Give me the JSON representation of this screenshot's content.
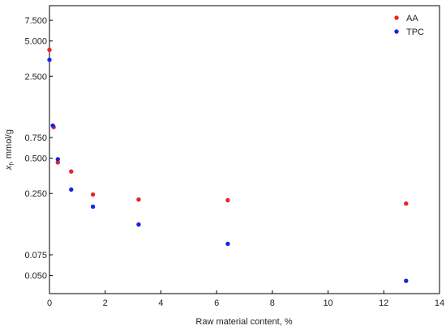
{
  "chart_data": {
    "type": "scatter",
    "xlabel": "Raw material content, %",
    "ylabel_main": "x",
    "ylabel_sub": "f",
    "ylabel_rest": ", mmol/g",
    "x_scale": "linear",
    "y_scale": "log",
    "xlim": [
      0,
      14
    ],
    "ylim": [
      0.035,
      10
    ],
    "x_ticks": [
      0,
      2,
      4,
      6,
      8,
      10,
      12,
      14
    ],
    "x_tick_labels": [
      "0",
      "2",
      "4",
      "6",
      "8",
      "10",
      "12",
      "14"
    ],
    "y_ticks": [
      0.05,
      0.075,
      0.25,
      0.5,
      0.75,
      2.5,
      5,
      7.5
    ],
    "y_tick_labels": [
      "0.050",
      "0.075",
      "0.250",
      "0.500",
      "0.750",
      "2.500",
      "5.000",
      "7.500"
    ],
    "grid": false,
    "legend_position": "top-right",
    "series": [
      {
        "name": "AA",
        "color": "#e8242b",
        "points": [
          [
            0.0,
            4.2
          ],
          [
            0.15,
            0.92
          ],
          [
            0.3,
            0.46
          ],
          [
            0.78,
            0.385
          ],
          [
            1.56,
            0.245
          ],
          [
            3.2,
            0.222
          ],
          [
            6.4,
            0.219
          ],
          [
            12.8,
            0.205
          ]
        ]
      },
      {
        "name": "TPC",
        "color": "#1b24e0",
        "points": [
          [
            0.0,
            3.45
          ],
          [
            0.12,
            0.95
          ],
          [
            0.3,
            0.49
          ],
          [
            0.78,
            0.27
          ],
          [
            1.56,
            0.193
          ],
          [
            3.2,
            0.136
          ],
          [
            6.4,
            0.093
          ],
          [
            12.8,
            0.045
          ]
        ]
      }
    ]
  }
}
